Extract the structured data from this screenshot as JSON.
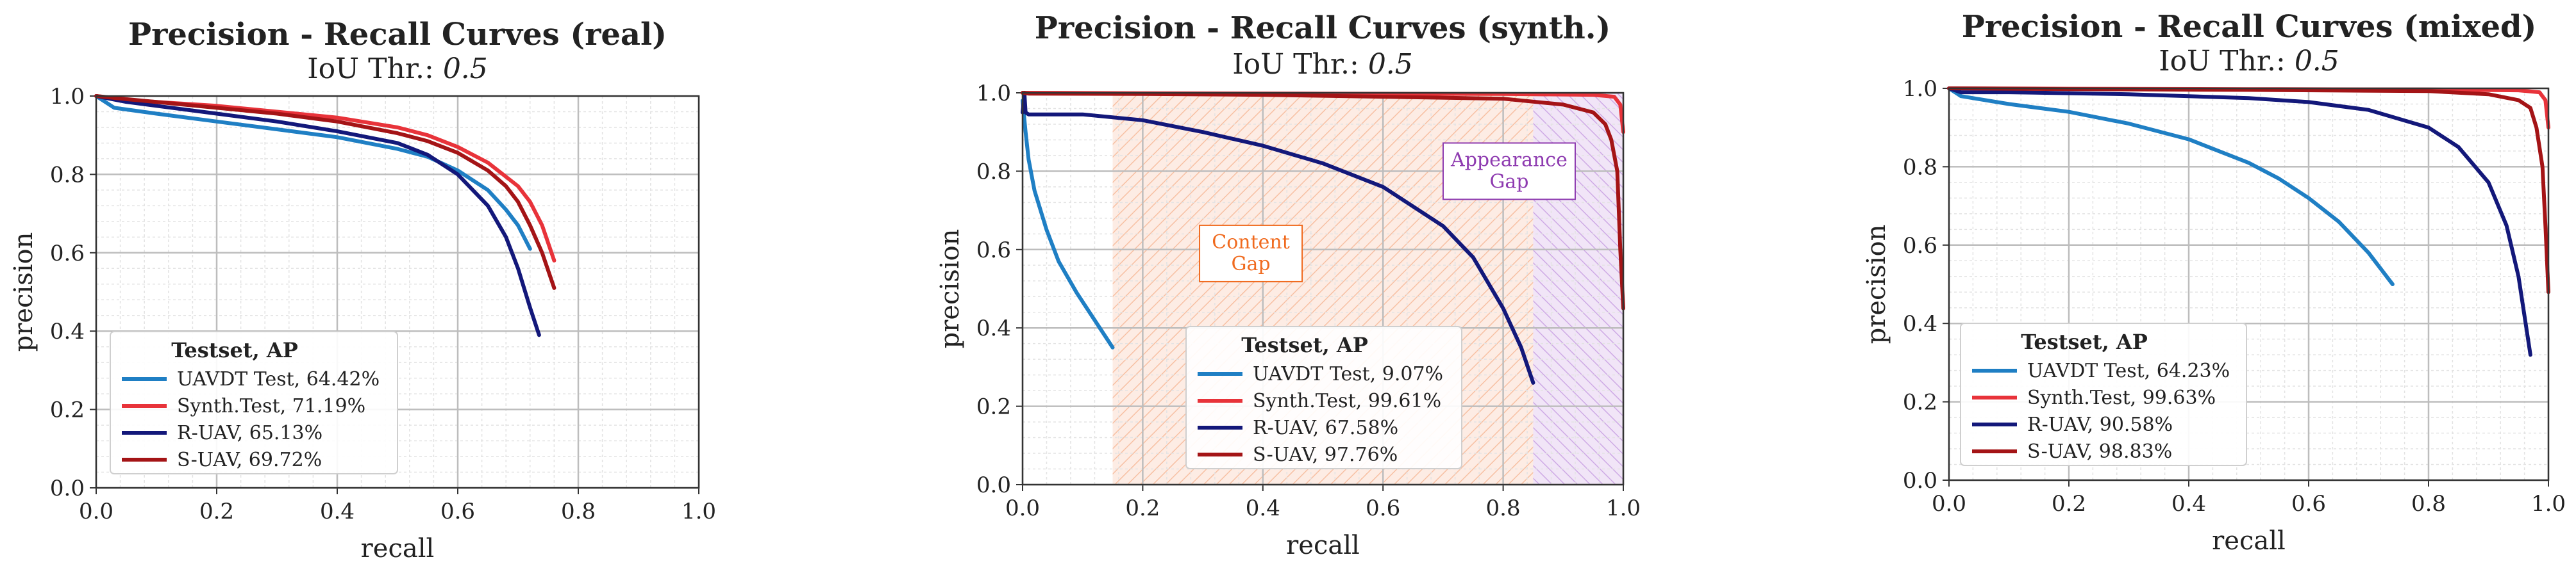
{
  "chart_data": [
    {
      "type": "line",
      "title": "Precision - Recall Curves (real)",
      "subtitle": {
        "prefix": "IoU Thr.: ",
        "value": "0.5"
      },
      "xlabel": "recall",
      "ylabel": "precision",
      "xlim": [
        0,
        1
      ],
      "ylim": [
        0,
        1
      ],
      "x_ticks": [
        "0.0",
        "0.2",
        "0.4",
        "0.6",
        "0.8",
        "1.0"
      ],
      "y_ticks": [
        "0.0",
        "0.2",
        "0.4",
        "0.6",
        "0.8",
        "1.0"
      ],
      "grid": true,
      "legend_title": "Testset, AP",
      "legend_position": "lower-left",
      "series": [
        {
          "name": "UAVDT Test, 64.42%",
          "color": "#1f7fc4",
          "x": [
            0,
            0.03,
            0.1,
            0.2,
            0.3,
            0.4,
            0.5,
            0.55,
            0.6,
            0.65,
            0.68,
            0.7,
            0.72
          ],
          "y": [
            1.0,
            0.97,
            0.955,
            0.935,
            0.915,
            0.895,
            0.865,
            0.845,
            0.81,
            0.76,
            0.71,
            0.67,
            0.61
          ]
        },
        {
          "name": "Synth.Test, 71.19%",
          "color": "#e8333a",
          "x": [
            0,
            0.05,
            0.1,
            0.2,
            0.3,
            0.4,
            0.5,
            0.55,
            0.6,
            0.65,
            0.7,
            0.72,
            0.74,
            0.76
          ],
          "y": [
            1.0,
            0.99,
            0.985,
            0.975,
            0.96,
            0.945,
            0.92,
            0.9,
            0.87,
            0.83,
            0.77,
            0.73,
            0.67,
            0.58
          ]
        },
        {
          "name": "R-UAV, 65.13%",
          "color": "#13187a",
          "x": [
            0,
            0.05,
            0.1,
            0.2,
            0.3,
            0.4,
            0.5,
            0.55,
            0.6,
            0.65,
            0.68,
            0.7,
            0.72,
            0.735
          ],
          "y": [
            1.0,
            0.985,
            0.975,
            0.955,
            0.935,
            0.91,
            0.88,
            0.85,
            0.8,
            0.72,
            0.64,
            0.56,
            0.46,
            0.39
          ]
        },
        {
          "name": "S-UAV, 69.72%",
          "color": "#a41416",
          "x": [
            0,
            0.05,
            0.1,
            0.2,
            0.3,
            0.4,
            0.5,
            0.55,
            0.6,
            0.65,
            0.68,
            0.7,
            0.72,
            0.74,
            0.76
          ],
          "y": [
            1.0,
            0.992,
            0.985,
            0.97,
            0.955,
            0.935,
            0.905,
            0.885,
            0.855,
            0.81,
            0.77,
            0.73,
            0.67,
            0.6,
            0.51
          ]
        }
      ],
      "regions": []
    },
    {
      "type": "line",
      "title": "Precision - Recall Curves (synth.)",
      "subtitle": {
        "prefix": "IoU Thr.: ",
        "value": "0.5"
      },
      "xlabel": "recall",
      "ylabel": "precision",
      "xlim": [
        0,
        1
      ],
      "ylim": [
        0,
        1
      ],
      "x_ticks": [
        "0.0",
        "0.2",
        "0.4",
        "0.6",
        "0.8",
        "1.0"
      ],
      "y_ticks": [
        "0.0",
        "0.2",
        "0.4",
        "0.6",
        "0.8",
        "1.0"
      ],
      "grid": true,
      "legend_title": "Testset, AP",
      "legend_position": "lower-center",
      "series": [
        {
          "name": "UAVDT Test, 9.07%",
          "color": "#1f7fc4",
          "x": [
            0,
            0.005,
            0.01,
            0.02,
            0.04,
            0.06,
            0.09,
            0.12,
            0.15
          ],
          "y": [
            0.98,
            0.9,
            0.83,
            0.75,
            0.65,
            0.57,
            0.49,
            0.42,
            0.35
          ]
        },
        {
          "name": "Synth.Test, 99.61%",
          "color": "#e8333a",
          "x": [
            0,
            0.01,
            0.2,
            0.5,
            0.8,
            0.95,
            0.985,
            0.995,
            1.0
          ],
          "y": [
            1.0,
            1.0,
            0.999,
            0.998,
            0.997,
            0.995,
            0.99,
            0.97,
            0.9
          ]
        },
        {
          "name": "R-UAV, 67.58%",
          "color": "#13187a",
          "x": [
            0,
            0.003,
            0.005,
            0.01,
            0.05,
            0.1,
            0.2,
            0.3,
            0.4,
            0.5,
            0.6,
            0.7,
            0.75,
            0.8,
            0.83,
            0.85
          ],
          "y": [
            0.95,
            1.0,
            0.95,
            0.945,
            0.945,
            0.945,
            0.93,
            0.9,
            0.865,
            0.82,
            0.76,
            0.66,
            0.58,
            0.45,
            0.35,
            0.26
          ]
        },
        {
          "name": "S-UAV, 97.76%",
          "color": "#a41416",
          "x": [
            0,
            0.01,
            0.2,
            0.4,
            0.6,
            0.8,
            0.9,
            0.95,
            0.97,
            0.98,
            0.99,
            0.995,
            1.0
          ],
          "y": [
            1.0,
            0.998,
            0.997,
            0.995,
            0.99,
            0.985,
            0.97,
            0.95,
            0.92,
            0.88,
            0.8,
            0.6,
            0.45
          ]
        }
      ],
      "regions": [
        {
          "label": "Content\nGap",
          "color": "#f06a1e",
          "x_range": [
            0.15,
            0.85
          ],
          "label_at": [
            0.38,
            0.59
          ]
        },
        {
          "label": "Appearance\nGap",
          "color": "#8e3bb0",
          "x_range": [
            0.85,
            1.0
          ],
          "label_at": [
            0.81,
            0.8
          ]
        }
      ]
    },
    {
      "type": "line",
      "title": "Precision - Recall Curves (mixed)",
      "subtitle": {
        "prefix": "IoU Thr.: ",
        "value": "0.5"
      },
      "xlabel": "recall",
      "ylabel": "precision",
      "xlim": [
        0,
        1
      ],
      "ylim": [
        0,
        1
      ],
      "x_ticks": [
        "0.0",
        "0.2",
        "0.4",
        "0.6",
        "0.8",
        "1.0"
      ],
      "y_ticks": [
        "0.0",
        "0.2",
        "0.4",
        "0.6",
        "0.8",
        "1.0"
      ],
      "grid": true,
      "legend_title": "Testset, AP",
      "legend_position": "lower-left",
      "series": [
        {
          "name": "UAVDT Test, 64.23%",
          "color": "#1f7fc4",
          "x": [
            0,
            0.02,
            0.1,
            0.2,
            0.3,
            0.4,
            0.5,
            0.55,
            0.6,
            0.65,
            0.7,
            0.72,
            0.74
          ],
          "y": [
            1.0,
            0.98,
            0.96,
            0.94,
            0.91,
            0.87,
            0.81,
            0.77,
            0.72,
            0.66,
            0.58,
            0.54,
            0.5
          ]
        },
        {
          "name": "Synth.Test, 99.63%",
          "color": "#e8333a",
          "x": [
            0,
            0.2,
            0.5,
            0.8,
            0.95,
            0.985,
            0.995,
            1.0
          ],
          "y": [
            1.0,
            0.999,
            0.998,
            0.997,
            0.995,
            0.99,
            0.97,
            0.9
          ]
        },
        {
          "name": "R-UAV, 90.58%",
          "color": "#13187a",
          "x": [
            0,
            0.02,
            0.1,
            0.3,
            0.5,
            0.6,
            0.7,
            0.8,
            0.85,
            0.9,
            0.93,
            0.95,
            0.96,
            0.97
          ],
          "y": [
            1.0,
            0.99,
            0.99,
            0.985,
            0.975,
            0.965,
            0.945,
            0.9,
            0.85,
            0.76,
            0.65,
            0.52,
            0.42,
            0.32
          ]
        },
        {
          "name": "S-UAV, 98.83%",
          "color": "#a41416",
          "x": [
            0,
            0.2,
            0.5,
            0.8,
            0.9,
            0.95,
            0.97,
            0.98,
            0.99,
            0.995,
            1.0
          ],
          "y": [
            1.0,
            0.998,
            0.996,
            0.993,
            0.985,
            0.97,
            0.95,
            0.9,
            0.8,
            0.65,
            0.48
          ]
        }
      ],
      "regions": []
    }
  ]
}
